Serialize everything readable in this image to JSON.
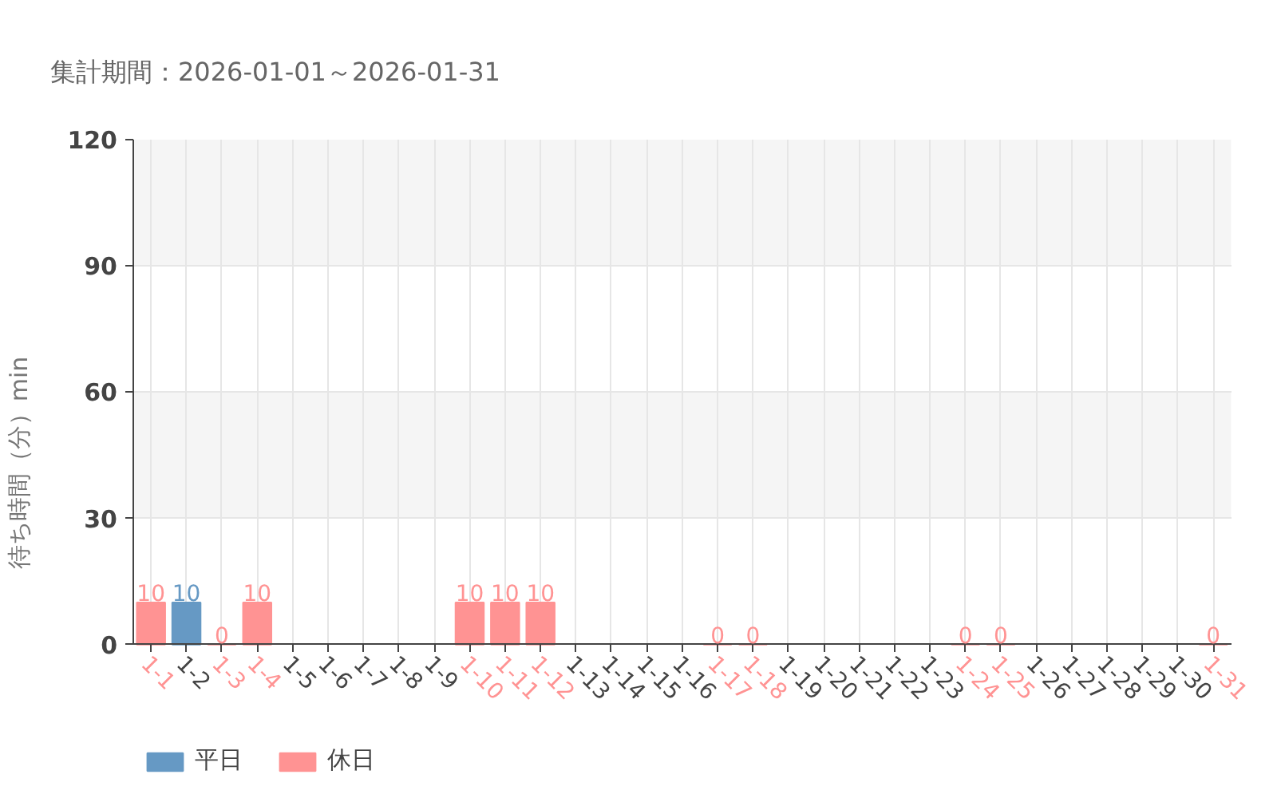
{
  "chart_data": {
    "type": "bar",
    "title": "集計期間：2026-01-01～2026-01-31",
    "ylabel": "待ち時間（分）min",
    "categories": [
      "1-1",
      "1-2",
      "1-3",
      "1-4",
      "1-5",
      "1-6",
      "1-7",
      "1-8",
      "1-9",
      "1-10",
      "1-11",
      "1-12",
      "1-13",
      "1-14",
      "1-15",
      "1-16",
      "1-17",
      "1-18",
      "1-19",
      "1-20",
      "1-21",
      "1-22",
      "1-23",
      "1-24",
      "1-25",
      "1-26",
      "1-27",
      "1-28",
      "1-29",
      "1-30",
      "1-31"
    ],
    "series": [
      {
        "name": "平日",
        "color": "#6699c4",
        "values": [
          null,
          10,
          null,
          null,
          null,
          null,
          null,
          null,
          null,
          null,
          null,
          null,
          null,
          null,
          null,
          null,
          null,
          null,
          null,
          null,
          null,
          null,
          null,
          null,
          null,
          null,
          null,
          null,
          null,
          null,
          null
        ]
      },
      {
        "name": "休日",
        "color": "#ff9393",
        "values": [
          10,
          null,
          0,
          10,
          null,
          null,
          null,
          null,
          null,
          10,
          10,
          10,
          null,
          null,
          null,
          null,
          0,
          0,
          null,
          null,
          null,
          null,
          null,
          0,
          0,
          null,
          null,
          null,
          null,
          null,
          0
        ]
      }
    ],
    "ylim": [
      0,
      120
    ],
    "yticks": [
      0,
      30,
      60,
      90,
      120
    ],
    "grid": true,
    "legend": "bottom left",
    "data_labels": true
  }
}
